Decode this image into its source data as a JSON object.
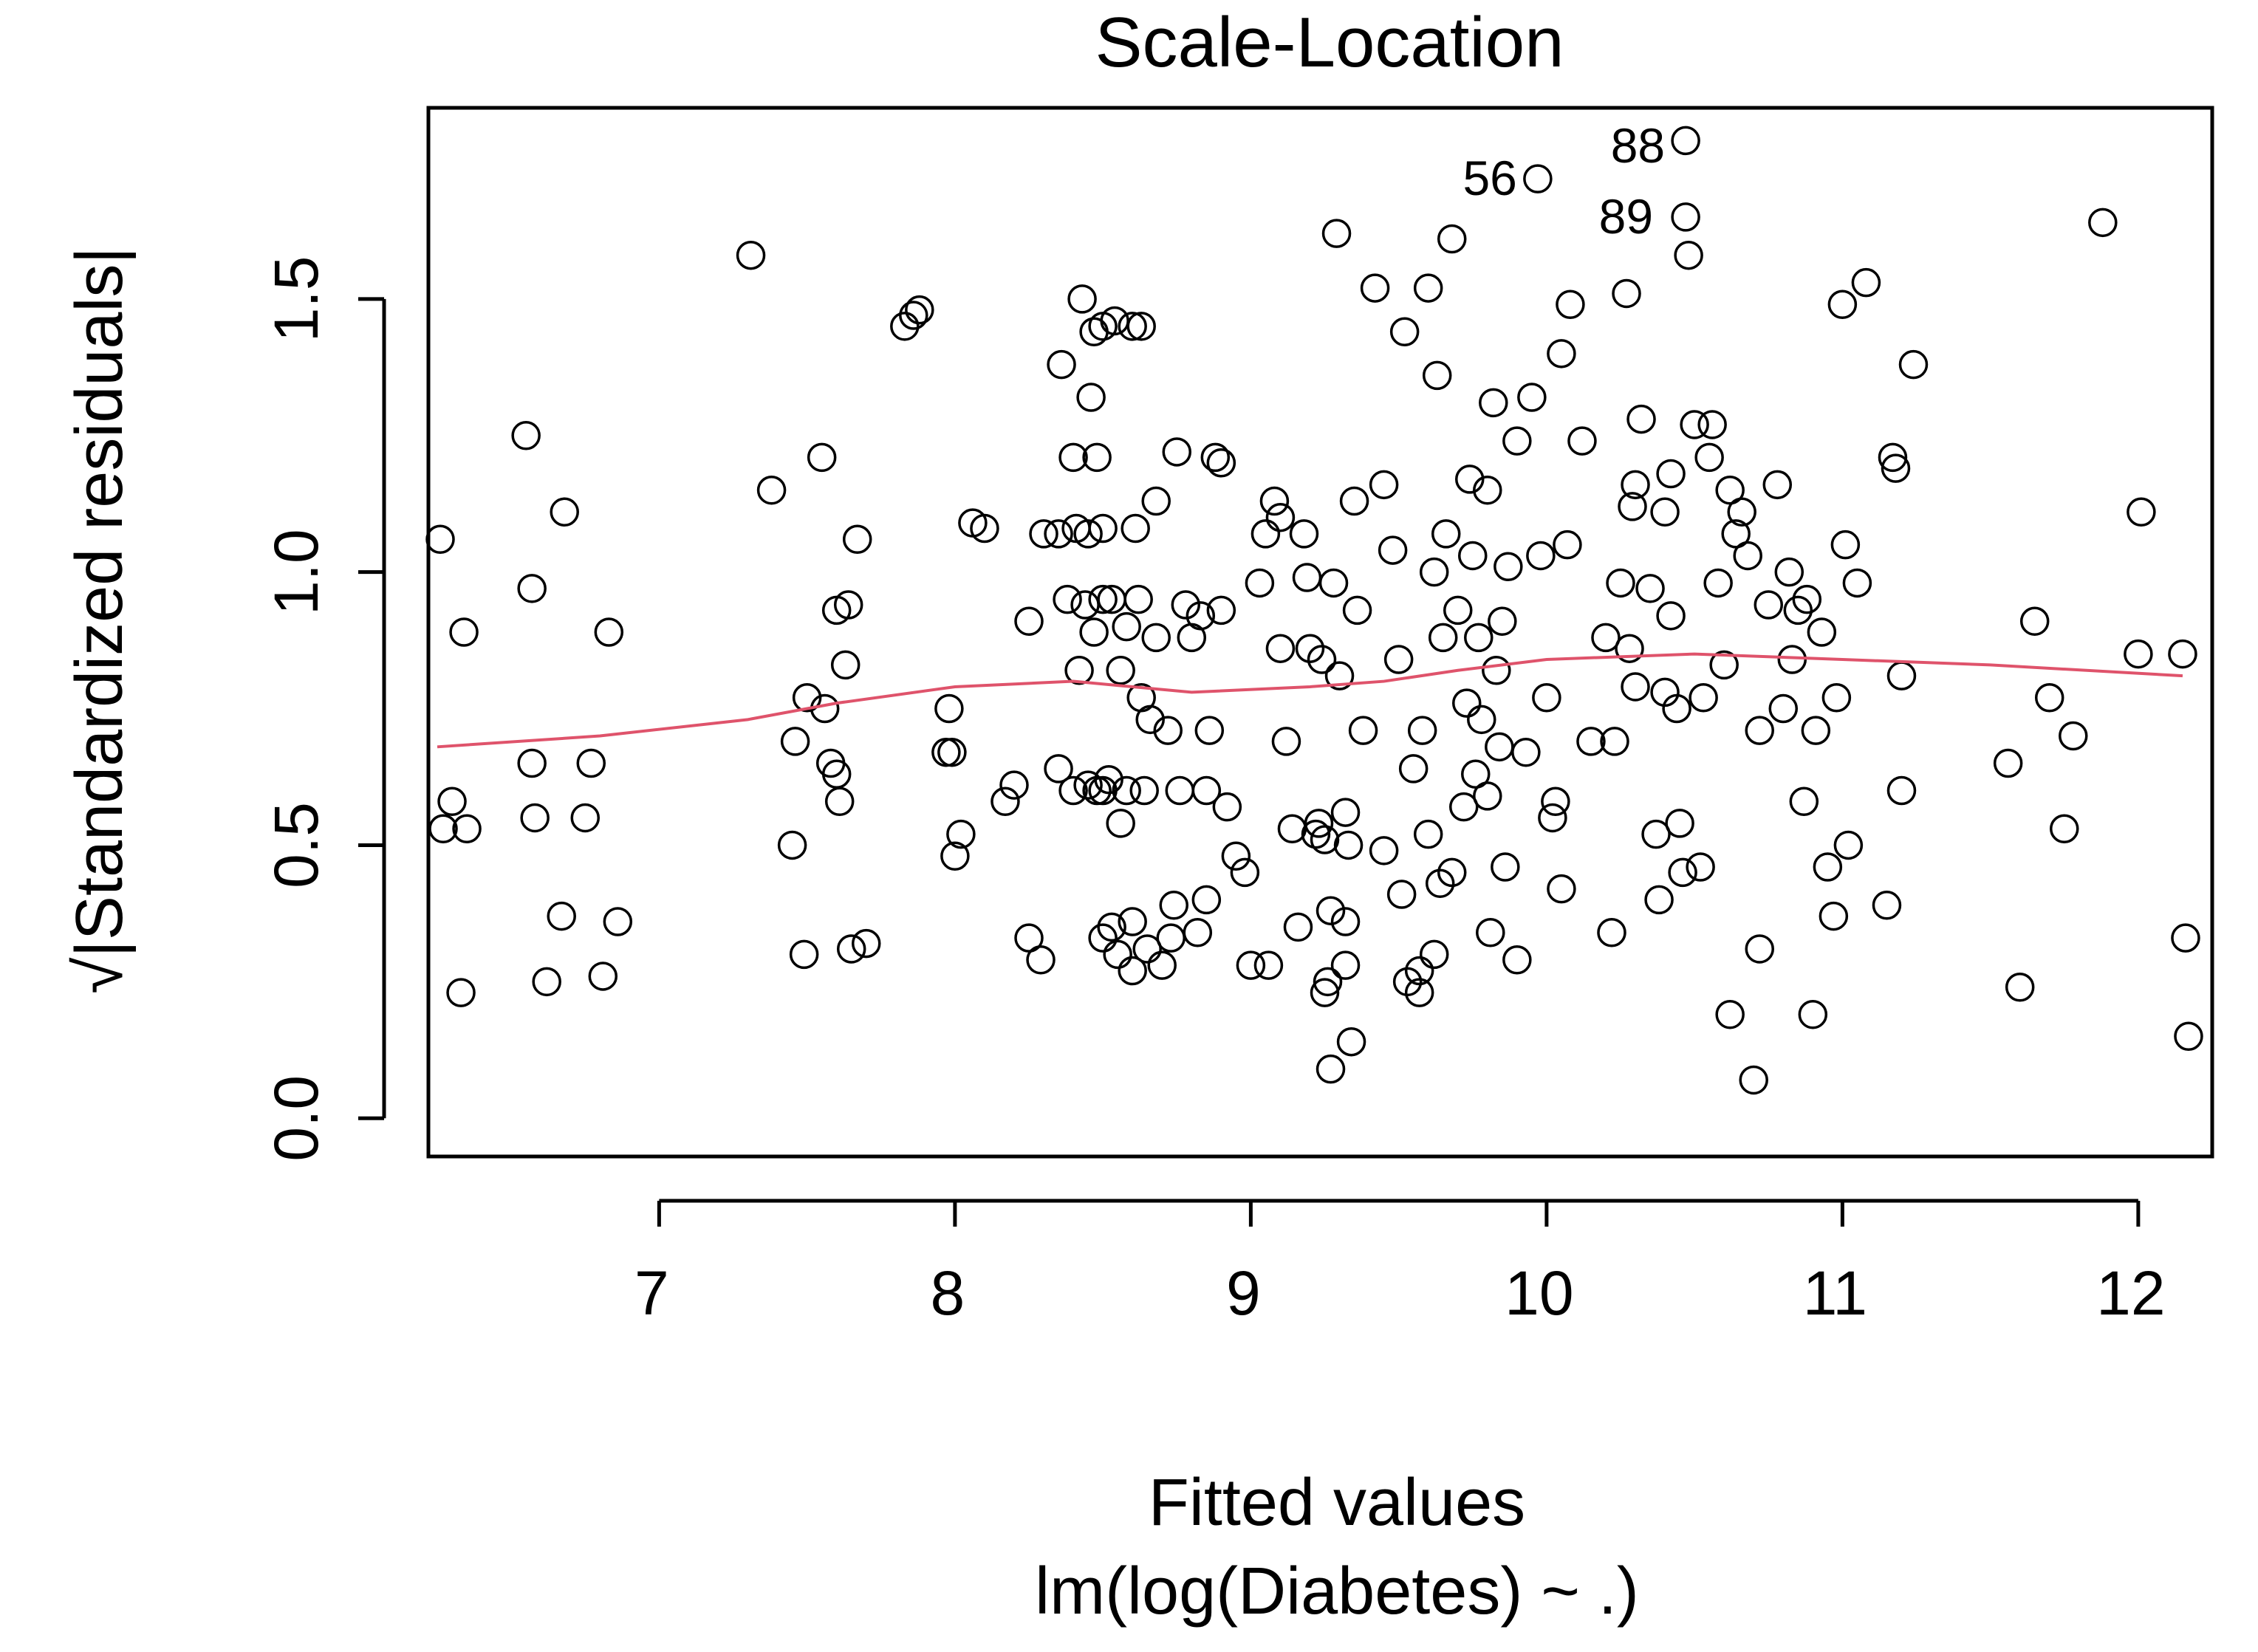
{
  "chart_data": {
    "type": "scatter",
    "title": "Scale-Location",
    "xlabel": "Fitted values",
    "subtitle": "lm(log(Diabetes) ~ .)",
    "ylabel": "√|Standardized residuals|",
    "xlim": [
      6.22,
      12.25
    ],
    "ylim": [
      -0.07,
      1.85
    ],
    "x_ticks": [
      {
        "value": 7,
        "label": "7"
      },
      {
        "value": 8,
        "label": "8"
      },
      {
        "value": 9,
        "label": "9"
      },
      {
        "value": 10,
        "label": "10"
      },
      {
        "value": 11,
        "label": "11"
      },
      {
        "value": 12,
        "label": "12"
      }
    ],
    "y_ticks": [
      {
        "value": 0.0,
        "label": "0.0"
      },
      {
        "value": 0.5,
        "label": "0.5"
      },
      {
        "value": 1.0,
        "label": "1.0"
      },
      {
        "value": 1.5,
        "label": "1.5"
      }
    ],
    "colors": {
      "points": "#000000",
      "smooth": "#DF536B"
    },
    "annotations": [
      {
        "label": "56",
        "x": 9.97,
        "y": 1.72
      },
      {
        "label": "88",
        "x": 10.47,
        "y": 1.78
      },
      {
        "label": "89",
        "x": 10.43,
        "y": 1.65
      }
    ],
    "smooth_line": [
      [
        6.25,
        0.68
      ],
      [
        6.8,
        0.7
      ],
      [
        7.3,
        0.73
      ],
      [
        7.6,
        0.76
      ],
      [
        8.0,
        0.79
      ],
      [
        8.4,
        0.8
      ],
      [
        8.8,
        0.78
      ],
      [
        9.2,
        0.79
      ],
      [
        9.45,
        0.8
      ],
      [
        9.7,
        0.82
      ],
      [
        10.0,
        0.84
      ],
      [
        10.5,
        0.85
      ],
      [
        11.0,
        0.84
      ],
      [
        11.5,
        0.83
      ],
      [
        12.15,
        0.81
      ]
    ],
    "points": [
      [
        6.26,
        1.06
      ],
      [
        6.27,
        0.53
      ],
      [
        6.3,
        0.58
      ],
      [
        6.33,
        0.23
      ],
      [
        6.34,
        0.89
      ],
      [
        6.35,
        0.53
      ],
      [
        6.55,
        1.25
      ],
      [
        6.57,
        0.97
      ],
      [
        6.57,
        0.65
      ],
      [
        6.58,
        0.55
      ],
      [
        6.62,
        0.25
      ],
      [
        6.67,
        0.37
      ],
      [
        6.68,
        1.11
      ],
      [
        6.75,
        0.55
      ],
      [
        6.77,
        0.65
      ],
      [
        6.81,
        0.26
      ],
      [
        6.83,
        0.89
      ],
      [
        6.86,
        0.36
      ],
      [
        7.31,
        1.58
      ],
      [
        7.38,
        1.15
      ],
      [
        7.45,
        0.5
      ],
      [
        7.46,
        0.69
      ],
      [
        7.49,
        0.3
      ],
      [
        7.5,
        0.77
      ],
      [
        7.55,
        1.21
      ],
      [
        7.56,
        0.75
      ],
      [
        7.58,
        0.65
      ],
      [
        7.6,
        0.63
      ],
      [
        7.6,
        0.93
      ],
      [
        7.61,
        0.58
      ],
      [
        7.63,
        0.83
      ],
      [
        7.64,
        0.94
      ],
      [
        7.65,
        0.31
      ],
      [
        7.67,
        1.06
      ],
      [
        7.7,
        0.32
      ],
      [
        7.83,
        1.45
      ],
      [
        7.86,
        1.47
      ],
      [
        7.88,
        1.48
      ],
      [
        7.97,
        0.67
      ],
      [
        7.98,
        0.75
      ],
      [
        7.99,
        0.67
      ],
      [
        8.0,
        0.48
      ],
      [
        8.02,
        0.52
      ],
      [
        8.06,
        1.09
      ],
      [
        8.1,
        1.08
      ],
      [
        8.17,
        0.58
      ],
      [
        8.2,
        0.61
      ],
      [
        8.25,
        0.33
      ],
      [
        8.25,
        0.91
      ],
      [
        8.29,
        0.29
      ],
      [
        8.3,
        1.07
      ],
      [
        8.35,
        1.07
      ],
      [
        8.35,
        0.64
      ],
      [
        8.36,
        1.38
      ],
      [
        8.38,
        0.95
      ],
      [
        8.4,
        1.21
      ],
      [
        8.4,
        0.6
      ],
      [
        8.41,
        1.08
      ],
      [
        8.42,
        0.82
      ],
      [
        8.43,
        1.5
      ],
      [
        8.44,
        0.94
      ],
      [
        8.45,
        1.07
      ],
      [
        8.45,
        0.61
      ],
      [
        8.46,
        1.32
      ],
      [
        8.47,
        1.44
      ],
      [
        8.47,
        0.89
      ],
      [
        8.48,
        1.21
      ],
      [
        8.48,
        0.6
      ],
      [
        8.5,
        1.45
      ],
      [
        8.5,
        1.08
      ],
      [
        8.5,
        0.95
      ],
      [
        8.5,
        0.6
      ],
      [
        8.5,
        0.33
      ],
      [
        8.52,
        0.62
      ],
      [
        8.53,
        0.95
      ],
      [
        8.53,
        0.35
      ],
      [
        8.54,
        1.46
      ],
      [
        8.55,
        0.3
      ],
      [
        8.56,
        0.54
      ],
      [
        8.56,
        0.82
      ],
      [
        8.58,
        0.6
      ],
      [
        8.58,
        0.9
      ],
      [
        8.6,
        1.45
      ],
      [
        8.6,
        0.36
      ],
      [
        8.6,
        0.27
      ],
      [
        8.61,
        1.08
      ],
      [
        8.62,
        0.95
      ],
      [
        8.63,
        1.45
      ],
      [
        8.63,
        0.77
      ],
      [
        8.64,
        0.6
      ],
      [
        8.65,
        0.31
      ],
      [
        8.66,
        0.73
      ],
      [
        8.68,
        1.13
      ],
      [
        8.68,
        0.88
      ],
      [
        8.7,
        0.28
      ],
      [
        8.72,
        0.71
      ],
      [
        8.73,
        0.33
      ],
      [
        8.74,
        0.39
      ],
      [
        8.75,
        1.22
      ],
      [
        8.76,
        0.6
      ],
      [
        8.78,
        0.94
      ],
      [
        8.8,
        0.88
      ],
      [
        8.82,
        0.34
      ],
      [
        8.83,
        0.92
      ],
      [
        8.85,
        0.4
      ],
      [
        8.85,
        0.6
      ],
      [
        8.86,
        0.71
      ],
      [
        8.88,
        1.21
      ],
      [
        8.9,
        1.2
      ],
      [
        8.9,
        0.93
      ],
      [
        8.92,
        0.57
      ],
      [
        8.95,
        0.48
      ],
      [
        8.98,
        0.45
      ],
      [
        9.0,
        0.28
      ],
      [
        9.03,
        0.98
      ],
      [
        9.05,
        1.07
      ],
      [
        9.06,
        0.28
      ],
      [
        9.08,
        1.13
      ],
      [
        9.1,
        1.1
      ],
      [
        9.1,
        0.86
      ],
      [
        9.12,
        0.69
      ],
      [
        9.14,
        0.53
      ],
      [
        9.16,
        0.35
      ],
      [
        9.18,
        1.07
      ],
      [
        9.19,
        0.99
      ],
      [
        9.2,
        0.86
      ],
      [
        9.22,
        0.52
      ],
      [
        9.23,
        0.54
      ],
      [
        9.24,
        0.84
      ],
      [
        9.25,
        0.51
      ],
      [
        9.25,
        0.23
      ],
      [
        9.26,
        0.25
      ],
      [
        9.27,
        0.38
      ],
      [
        9.27,
        0.09
      ],
      [
        9.28,
        0.98
      ],
      [
        9.29,
        1.62
      ],
      [
        9.3,
        0.81
      ],
      [
        9.32,
        0.56
      ],
      [
        9.32,
        0.36
      ],
      [
        9.32,
        0.28
      ],
      [
        9.33,
        0.5
      ],
      [
        9.34,
        0.14
      ],
      [
        9.35,
        1.13
      ],
      [
        9.36,
        0.93
      ],
      [
        9.38,
        0.71
      ],
      [
        9.42,
        1.52
      ],
      [
        9.45,
        0.49
      ],
      [
        9.45,
        1.16
      ],
      [
        9.48,
        1.04
      ],
      [
        9.5,
        0.84
      ],
      [
        9.51,
        0.41
      ],
      [
        9.52,
        1.44
      ],
      [
        9.53,
        0.25
      ],
      [
        9.55,
        0.64
      ],
      [
        9.57,
        0.23
      ],
      [
        9.57,
        0.27
      ],
      [
        9.58,
        0.71
      ],
      [
        9.6,
        1.52
      ],
      [
        9.6,
        0.52
      ],
      [
        9.62,
        0.3
      ],
      [
        9.62,
        1.0
      ],
      [
        9.63,
        1.36
      ],
      [
        9.64,
        0.43
      ],
      [
        9.65,
        0.88
      ],
      [
        9.66,
        1.07
      ],
      [
        9.68,
        1.61
      ],
      [
        9.68,
        0.45
      ],
      [
        9.7,
        0.93
      ],
      [
        9.72,
        0.57
      ],
      [
        9.73,
        0.76
      ],
      [
        9.74,
        1.17
      ],
      [
        9.75,
        1.03
      ],
      [
        9.76,
        0.63
      ],
      [
        9.77,
        0.88
      ],
      [
        9.78,
        0.73
      ],
      [
        9.8,
        1.15
      ],
      [
        9.8,
        0.59
      ],
      [
        9.81,
        0.34
      ],
      [
        9.82,
        1.31
      ],
      [
        9.83,
        0.82
      ],
      [
        9.84,
        0.68
      ],
      [
        9.85,
        0.91
      ],
      [
        9.86,
        0.46
      ],
      [
        9.87,
        1.01
      ],
      [
        9.9,
        0.29
      ],
      [
        9.9,
        1.24
      ],
      [
        9.93,
        0.67
      ],
      [
        9.95,
        1.32
      ],
      [
        9.97,
        1.72
      ],
      [
        9.98,
        1.03
      ],
      [
        10.0,
        0.77
      ],
      [
        10.02,
        0.55
      ],
      [
        10.03,
        0.58
      ],
      [
        10.05,
        1.4
      ],
      [
        10.05,
        0.42
      ],
      [
        10.07,
        1.05
      ],
      [
        10.08,
        1.49
      ],
      [
        10.12,
        1.24
      ],
      [
        10.15,
        0.69
      ],
      [
        10.2,
        0.88
      ],
      [
        10.22,
        0.34
      ],
      [
        10.23,
        0.69
      ],
      [
        10.25,
        0.98
      ],
      [
        10.27,
        1.51
      ],
      [
        10.28,
        0.86
      ],
      [
        10.29,
        1.12
      ],
      [
        10.3,
        1.16
      ],
      [
        10.3,
        0.79
      ],
      [
        10.32,
        1.28
      ],
      [
        10.35,
        0.97
      ],
      [
        10.37,
        0.52
      ],
      [
        10.38,
        0.4
      ],
      [
        10.4,
        1.11
      ],
      [
        10.4,
        0.78
      ],
      [
        10.42,
        1.18
      ],
      [
        10.42,
        0.92
      ],
      [
        10.44,
        0.75
      ],
      [
        10.45,
        0.54
      ],
      [
        10.46,
        0.45
      ],
      [
        10.47,
        1.65
      ],
      [
        10.47,
        1.79
      ],
      [
        10.48,
        1.58
      ],
      [
        10.5,
        1.27
      ],
      [
        10.52,
        0.46
      ],
      [
        10.53,
        0.77
      ],
      [
        10.55,
        1.21
      ],
      [
        10.56,
        1.27
      ],
      [
        10.58,
        0.98
      ],
      [
        10.6,
        0.83
      ],
      [
        10.62,
        1.15
      ],
      [
        10.62,
        0.19
      ],
      [
        10.64,
        1.07
      ],
      [
        10.66,
        1.11
      ],
      [
        10.68,
        1.03
      ],
      [
        10.7,
        0.07
      ],
      [
        10.72,
        0.71
      ],
      [
        10.72,
        0.31
      ],
      [
        10.75,
        0.94
      ],
      [
        10.78,
        1.16
      ],
      [
        10.8,
        0.75
      ],
      [
        10.82,
        1.0
      ],
      [
        10.83,
        0.84
      ],
      [
        10.85,
        0.93
      ],
      [
        10.87,
        0.58
      ],
      [
        10.88,
        0.95
      ],
      [
        10.9,
        0.19
      ],
      [
        10.91,
        0.71
      ],
      [
        10.93,
        0.89
      ],
      [
        10.95,
        0.46
      ],
      [
        10.97,
        0.37
      ],
      [
        10.98,
        0.77
      ],
      [
        11.0,
        1.49
      ],
      [
        11.01,
        1.05
      ],
      [
        11.02,
        0.5
      ],
      [
        11.05,
        0.98
      ],
      [
        11.08,
        1.53
      ],
      [
        11.15,
        0.39
      ],
      [
        11.17,
        1.21
      ],
      [
        11.18,
        1.19
      ],
      [
        11.2,
        0.81
      ],
      [
        11.2,
        0.6
      ],
      [
        11.24,
        1.38
      ],
      [
        11.56,
        0.65
      ],
      [
        11.6,
        0.24
      ],
      [
        11.65,
        0.91
      ],
      [
        11.7,
        0.77
      ],
      [
        11.75,
        0.53
      ],
      [
        11.78,
        0.7
      ],
      [
        11.88,
        1.64
      ],
      [
        12.0,
        0.85
      ],
      [
        12.01,
        1.11
      ],
      [
        12.15,
        0.85
      ],
      [
        12.16,
        0.33
      ],
      [
        12.17,
        0.15
      ]
    ]
  }
}
